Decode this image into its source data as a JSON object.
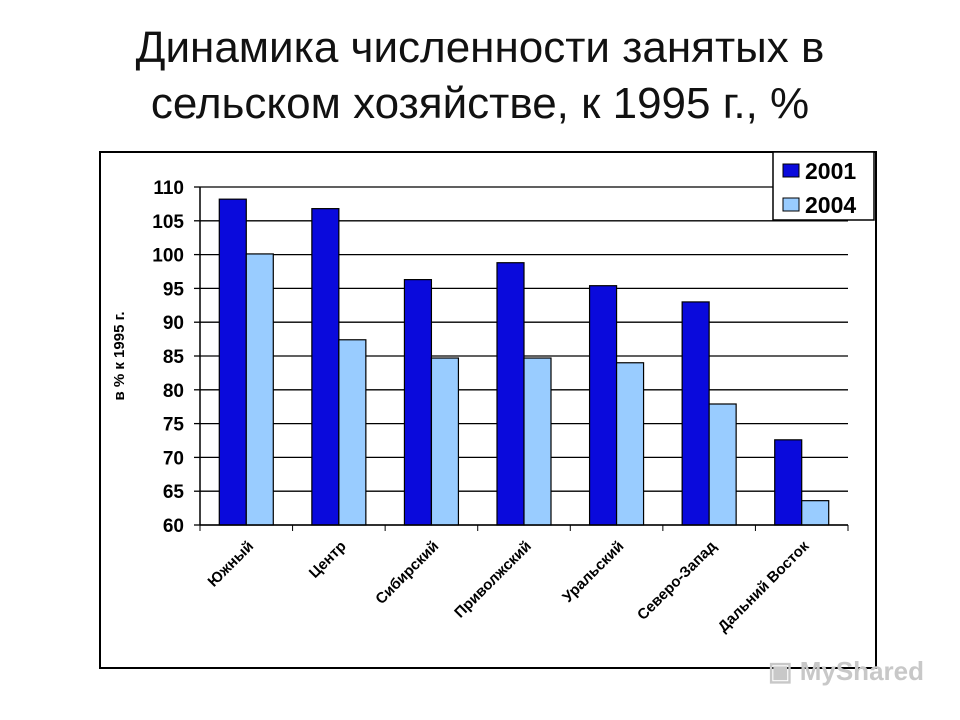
{
  "chart_data": {
    "type": "bar",
    "title": [
      "Динамика численности занятых в",
      "сельском хозяйстве, к 1995 г., %"
    ],
    "ylabel": "в % к 1995 г.",
    "xlabel": "",
    "ylim": [
      60,
      110
    ],
    "yticks": [
      60,
      65,
      70,
      75,
      80,
      85,
      90,
      95,
      100,
      105,
      110
    ],
    "grid": true,
    "legend_position": "top-right",
    "categories": [
      "Южный",
      "Центр",
      "Сибирский",
      "Приволжский",
      "Уральский",
      "Северо-Запад",
      "Дальний Восток"
    ],
    "series": [
      {
        "name": "2001",
        "color": "#0a0adc",
        "values": [
          108.2,
          106.8,
          96.3,
          98.8,
          95.4,
          93.0,
          72.6
        ]
      },
      {
        "name": "2004",
        "color": "#99ccff",
        "values": [
          100.1,
          87.4,
          84.7,
          84.7,
          84.0,
          77.9,
          63.6
        ]
      }
    ]
  },
  "watermark": "MyShared"
}
